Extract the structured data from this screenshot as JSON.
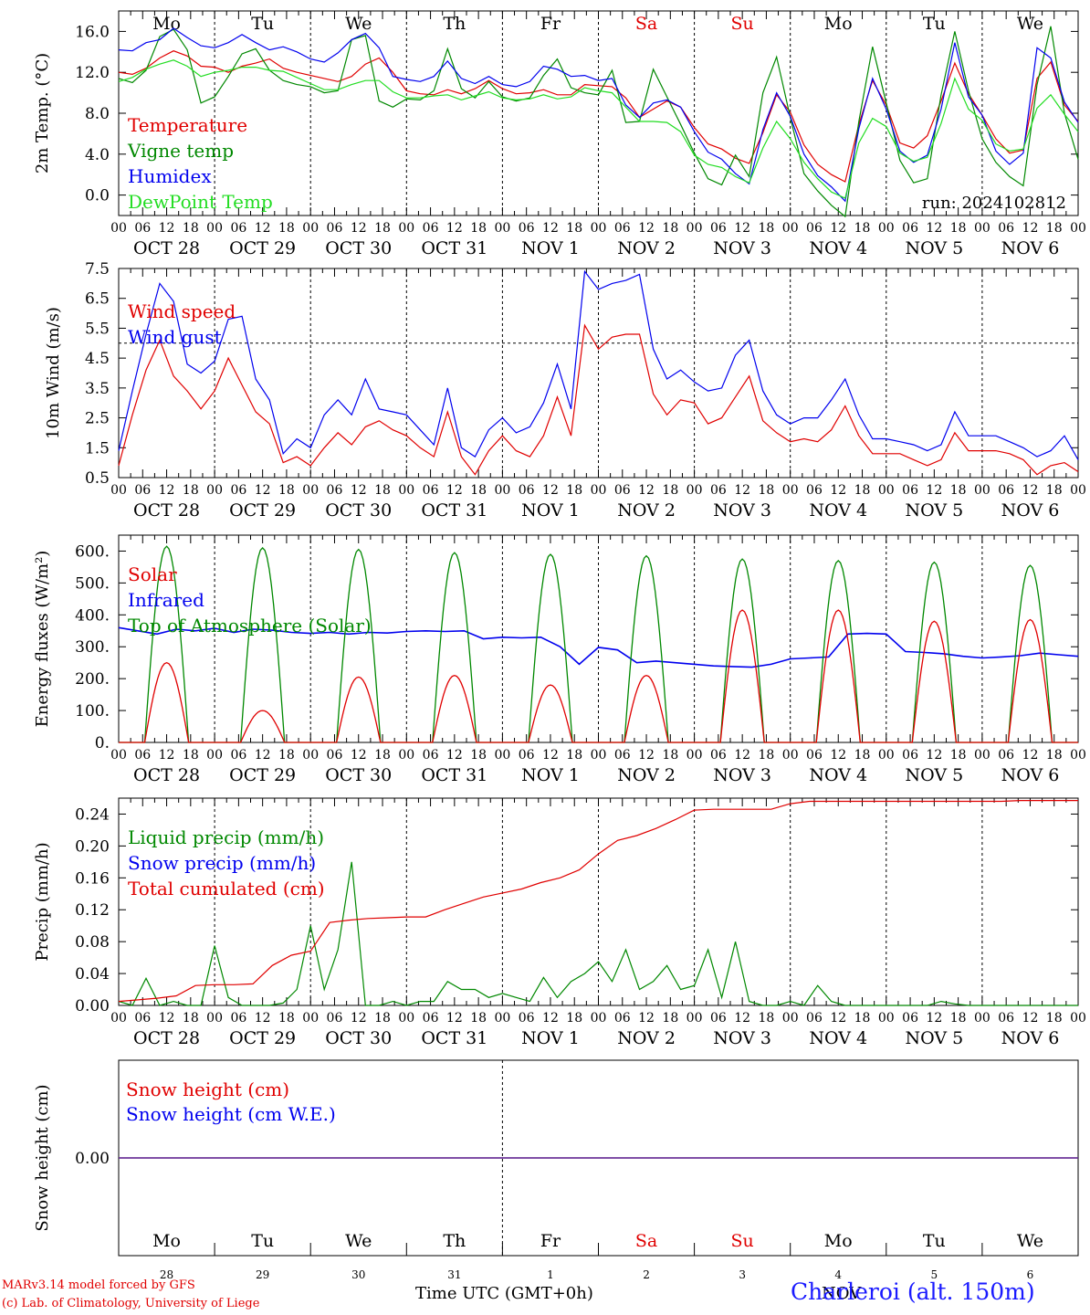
{
  "footer": {
    "model": "MARv3.14 model forced by GFS",
    "lab": "(c) Lab. of Climatology, University of Liege",
    "axis_title": "Time UTC (GMT+0h)",
    "station": "Charleroi (alt. 150m)",
    "month_label": "NOV"
  },
  "colors": {
    "red": "#e00000",
    "green": "#008800",
    "blue": "#0000ee",
    "lightgreen": "#22dd22",
    "purple": "#6a2a8a",
    "weekend": "#e00000"
  },
  "days": {
    "weekday_labels": [
      "Mo",
      "Tu",
      "We",
      "Th",
      "Fr",
      "Sa",
      "Su",
      "Mo",
      "Tu",
      "We"
    ],
    "weekend_flags": [
      false,
      false,
      false,
      false,
      false,
      true,
      true,
      false,
      false,
      false
    ],
    "date_labels": [
      "OCT 28",
      "OCT 29",
      "OCT 30",
      "OCT 31",
      "NOV  1",
      "NOV  2",
      "NOV  3",
      "NOV  4",
      "NOV  5",
      "NOV  6"
    ],
    "hour_labels": [
      "00",
      "06",
      "12",
      "18"
    ],
    "last_hour_label": "00",
    "day_numbers": [
      "28",
      "29",
      "30",
      "31",
      "1",
      "2",
      "3",
      "4",
      "5",
      "6"
    ]
  },
  "chart_data": [
    {
      "id": "temperature",
      "type": "line",
      "ylabel": "2m Temp. (°C)",
      "ylim": [
        -2.0,
        18.0
      ],
      "yticks": [
        "0.0",
        "4.0",
        "8.0",
        "12.0",
        "16.0"
      ],
      "ytick_values": [
        0,
        4,
        8,
        12,
        16
      ],
      "run_label": "run: 2024102812",
      "x_hours_step": 6,
      "series": [
        {
          "name": "Temperature",
          "color": "red",
          "values": [
            12,
            11.8,
            12.4,
            13.4,
            14.1,
            13.6,
            12.6,
            12.5,
            12,
            12.6,
            12.9,
            13.3,
            12.4,
            12,
            11.7,
            11.4,
            11.1,
            11.6,
            12.8,
            13.4,
            12,
            10.2,
            9.9,
            9.8,
            10.3,
            9.9,
            10.4,
            11.2,
            10.4,
            9.9,
            10,
            10.3,
            9.8,
            9.8,
            10.8,
            10.7,
            10.6,
            9.5,
            7.6,
            8.4,
            9.2,
            8.6,
            6.6,
            5,
            4.5,
            3.6,
            3.1,
            6.1,
            9.8,
            8.1,
            4.9,
            3,
            2,
            1.3,
            6.9,
            11.2,
            8.8,
            5.1,
            4.6,
            5.8,
            9.2,
            12.9,
            9.9,
            7.8,
            5.5,
            4.1,
            4.4,
            11.4,
            13,
            8.8,
            7.2
          ]
        },
        {
          "name": "Vigne temp",
          "color": "green",
          "values": [
            11.4,
            11,
            12.2,
            15.5,
            16.2,
            14.2,
            9,
            9.6,
            11.6,
            13.8,
            14.3,
            12.2,
            11.2,
            10.8,
            10.6,
            10,
            10.2,
            15.2,
            15.6,
            9.2,
            8.6,
            9.4,
            9.3,
            10.2,
            14.3,
            10.4,
            9.5,
            11.1,
            9.6,
            9.2,
            9.5,
            11.7,
            13.3,
            10.5,
            10,
            9.8,
            12.2,
            7.1,
            7.2,
            12.3,
            9.6,
            6.9,
            4.1,
            1.6,
            1,
            3.9,
            1.8,
            10,
            13.5,
            7.6,
            2.1,
            0.4,
            -1,
            -2.1,
            7.2,
            14.5,
            9,
            3.4,
            1.2,
            1.6,
            9.8,
            16,
            10.2,
            5.5,
            3.2,
            1.8,
            0.9,
            10.8,
            16.5,
            8,
            3.5
          ]
        },
        {
          "name": "Humidex",
          "color": "blue",
          "values": [
            14.2,
            14.1,
            14.9,
            15.2,
            16.3,
            15.4,
            14.6,
            14.4,
            14.9,
            15.7,
            14.9,
            14.2,
            14.5,
            14,
            13.3,
            13,
            13.9,
            15.2,
            15.8,
            14.4,
            11.6,
            11.3,
            11.1,
            11.6,
            13.1,
            11.4,
            10.9,
            11.6,
            10.8,
            10.6,
            11.1,
            12.6,
            12.3,
            11.6,
            11.7,
            11.2,
            11.4,
            8.8,
            7.6,
            9,
            9.3,
            8.6,
            6.2,
            4.2,
            3.5,
            2.1,
            1.1,
            6.4,
            10,
            7.7,
            4,
            1.9,
            0.8,
            -0.6,
            6.5,
            11.4,
            8.4,
            4.3,
            3.2,
            3.9,
            8.4,
            14.9,
            9.6,
            7.8,
            4.3,
            3,
            4.1,
            14.4,
            13.4,
            9.1,
            7.1
          ]
        },
        {
          "name": "DewPoint Temp",
          "color": "lightgreen",
          "values": [
            11.1,
            11.5,
            12.3,
            12.8,
            13.2,
            12.6,
            11.6,
            12,
            12.2,
            12.5,
            12.5,
            12.2,
            12.1,
            11.5,
            10.9,
            10.3,
            10.3,
            10.8,
            11.2,
            11.2,
            10.1,
            9.5,
            9.5,
            9.7,
            9.8,
            9.3,
            9.7,
            10.1,
            9.5,
            9.3,
            9.4,
            9.8,
            9.4,
            9.6,
            10.5,
            10.2,
            10,
            8.6,
            7.2,
            7.2,
            7.1,
            6.2,
            3.9,
            3,
            2.7,
            1.8,
            1.2,
            4.6,
            7.2,
            5.5,
            3.2,
            1.6,
            0.3,
            -0.3,
            5.1,
            7.5,
            6.7,
            4.1,
            3.3,
            3.7,
            7,
            11.4,
            8.4,
            7.3,
            5,
            4.3,
            4.5,
            8.5,
            9.8,
            7.9,
            6.2
          ]
        }
      ]
    },
    {
      "id": "wind",
      "type": "line",
      "ylabel": "10m Wind (m/s)",
      "ylim": [
        0.5,
        7.5
      ],
      "yticks": [
        "0.5",
        "1.5",
        "2.5",
        "3.5",
        "4.5",
        "5.5",
        "6.5",
        "7.5"
      ],
      "ytick_values": [
        0.5,
        1.5,
        2.5,
        3.5,
        4.5,
        5.5,
        6.5,
        7.5
      ],
      "refline": 5.0,
      "x_hours_step": 6,
      "series": [
        {
          "name": "Wind speed",
          "color": "red",
          "values": [
            0.9,
            2.6,
            4.1,
            5.1,
            3.9,
            3.4,
            2.8,
            3.4,
            4.5,
            3.6,
            2.7,
            2.3,
            1,
            1.2,
            0.9,
            1.5,
            2,
            1.6,
            2.2,
            2.4,
            2.1,
            1.9,
            1.5,
            1.2,
            2.7,
            1.2,
            0.6,
            1.4,
            1.9,
            1.4,
            1.2,
            1.9,
            3.2,
            1.9,
            5.6,
            4.8,
            5.2,
            5.3,
            5.3,
            3.3,
            2.6,
            3.1,
            3,
            2.3,
            2.5,
            3.2,
            3.9,
            2.4,
            2,
            1.7,
            1.8,
            1.7,
            2.1,
            2.9,
            1.9,
            1.3,
            1.3,
            1.3,
            1.1,
            0.9,
            1.1,
            2,
            1.4,
            1.4,
            1.4,
            1.3,
            1.1,
            0.6,
            0.9,
            1,
            0.7
          ]
        },
        {
          "name": "Wind gust",
          "color": "blue",
          "values": [
            1.4,
            3.4,
            5.3,
            7,
            6.4,
            4.3,
            4,
            4.4,
            5.8,
            5.9,
            3.8,
            3.1,
            1.3,
            1.8,
            1.5,
            2.6,
            3.1,
            2.6,
            3.8,
            2.8,
            2.7,
            2.6,
            2.1,
            1.6,
            3.5,
            1.5,
            1.2,
            2.1,
            2.5,
            2,
            2.2,
            3,
            4.3,
            2.8,
            7.4,
            6.8,
            7,
            7.1,
            7.3,
            4.8,
            3.8,
            4.1,
            3.7,
            3.4,
            3.5,
            4.6,
            5.1,
            3.4,
            2.6,
            2.3,
            2.5,
            2.5,
            3.1,
            3.8,
            2.6,
            1.8,
            1.8,
            1.7,
            1.6,
            1.4,
            1.6,
            2.7,
            1.9,
            1.9,
            1.9,
            1.7,
            1.5,
            1.2,
            1.4,
            1.9,
            1.1
          ]
        }
      ]
    },
    {
      "id": "energy",
      "type": "line",
      "ylabel": "Energy fluxes (W/m²)",
      "ylim": [
        0,
        650
      ],
      "yticks": [
        "0.",
        "100.",
        "200.",
        "300.",
        "400.",
        "500.",
        "600."
      ],
      "ytick_values": [
        0,
        100,
        200,
        300,
        400,
        500,
        600
      ],
      "peak_hour": 12,
      "half_width_hours": 5.5,
      "series": [
        {
          "name": "Solar",
          "color": "red",
          "daily_peaks": [
            250,
            100,
            205,
            210,
            180,
            210,
            415,
            415,
            380,
            385
          ]
        },
        {
          "name": "Infrared",
          "color": "blue",
          "values": [
            360,
            350,
            340,
            355,
            350,
            358,
            345,
            355,
            352,
            345,
            342,
            345,
            340,
            345,
            343,
            348,
            350,
            348,
            350,
            325,
            330,
            328,
            330,
            300,
            245,
            298,
            290,
            250,
            255,
            250,
            245,
            240,
            238,
            236,
            245,
            262,
            265,
            268,
            340,
            342,
            340,
            285,
            282,
            278,
            270,
            265,
            268,
            272,
            280,
            275,
            270
          ]
        },
        {
          "name": "Top of Atmosphere (Solar)",
          "color": "green",
          "daily_peaks": [
            615,
            610,
            605,
            595,
            590,
            585,
            575,
            570,
            565,
            555
          ]
        }
      ]
    },
    {
      "id": "precip",
      "type": "line",
      "ylabel": "Precip (mm/h)",
      "ylim": [
        0.0,
        0.26
      ],
      "yticks": [
        "0.00",
        "0.04",
        "0.08",
        "0.12",
        "0.16",
        "0.20",
        "0.24"
      ],
      "ytick_values": [
        0,
        0.04,
        0.08,
        0.12,
        0.16,
        0.2,
        0.24
      ],
      "series": [
        {
          "name": "Liquid precip (mm/h)",
          "color": "green",
          "values": [
            0.005,
            0,
            0.034,
            0,
            0.005,
            0,
            0,
            0.075,
            0.01,
            0,
            0,
            0,
            0.003,
            0.02,
            0.1,
            0.02,
            0.07,
            0.18,
            0,
            0,
            0.005,
            0,
            0.005,
            0.005,
            0.03,
            0.02,
            0.02,
            0.01,
            0.015,
            0.01,
            0.005,
            0.035,
            0.01,
            0.03,
            0.04,
            0.055,
            0.03,
            0.07,
            0.02,
            0.03,
            0.05,
            0.02,
            0.025,
            0.07,
            0.01,
            0.08,
            0.005,
            0,
            0,
            0.005,
            0,
            0.025,
            0.005,
            0,
            0,
            0,
            0,
            0,
            0,
            0,
            0.005,
            0.002,
            0,
            0,
            0,
            0,
            0,
            0,
            0,
            0,
            0
          ]
        },
        {
          "name": "Snow precip (mm/h)",
          "color": "blue",
          "values": []
        },
        {
          "name": "Total cumulated (cm)",
          "color": "red",
          "values": [
            0.005,
            0.007,
            0.009,
            0.012,
            0.025,
            0.026,
            0.026,
            0.027,
            0.05,
            0.063,
            0.068,
            0.104,
            0.107,
            0.109,
            0.11,
            0.111,
            0.111,
            0.12,
            0.128,
            0.136,
            0.141,
            0.146,
            0.154,
            0.16,
            0.17,
            0.19,
            0.207,
            0.213,
            0.222,
            0.233,
            0.245,
            0.246,
            0.246,
            0.246,
            0.246,
            0.253,
            0.256,
            0.256,
            0.256,
            0.256,
            0.256,
            0.256,
            0.256,
            0.256,
            0.256,
            0.256,
            0.256,
            0.257,
            0.257,
            0.257,
            0.257
          ]
        }
      ]
    },
    {
      "id": "snow",
      "type": "line",
      "ylabel": "Snow height (cm)",
      "ylim": [
        -1,
        1
      ],
      "yticks": [
        "0.00"
      ],
      "ytick_values": [
        0
      ],
      "series": [
        {
          "name": "Snow height (cm)",
          "color": "red",
          "values": [
            0,
            0
          ]
        },
        {
          "name": "Snow height (cm W.E.)",
          "color": "blue",
          "values": [
            0,
            0
          ]
        }
      ]
    }
  ]
}
